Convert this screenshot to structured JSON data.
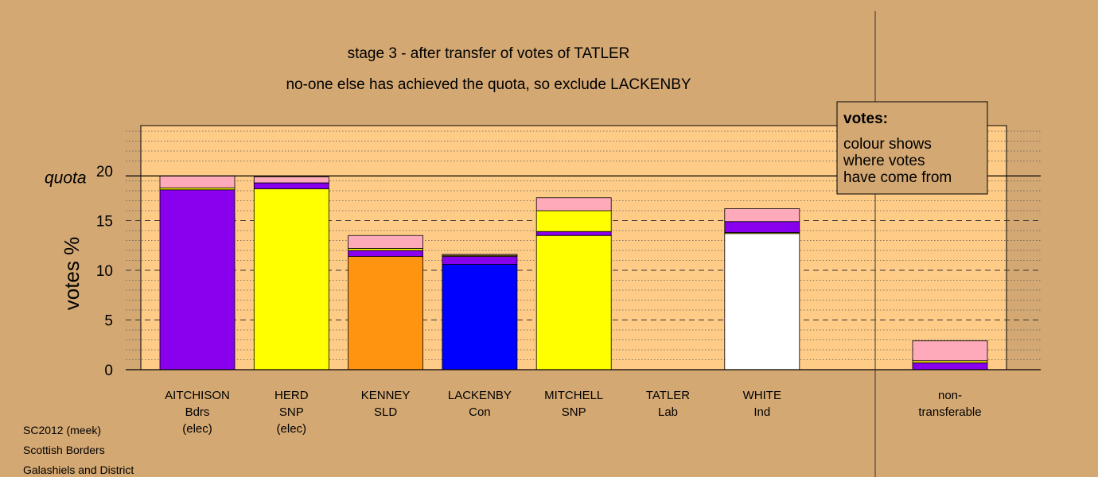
{
  "title_line1": "stage 3 - after transfer of votes of TATLER",
  "title_line2": "no-one else has achieved the quota, so exclude LACKENBY",
  "quota_label": "quota",
  "legend": {
    "heading": "votes:",
    "lines": [
      "colour shows",
      "where votes",
      "have come from"
    ]
  },
  "footer": [
    "SC2012 (meek)",
    "Scottish Borders",
    "Galashiels and District"
  ],
  "colors": {
    "background": "#d4a873",
    "plot_background": "#ffcc88",
    "Bdrs": "#8800ee",
    "SNP": "#ffff00",
    "SLD": "#ff9410",
    "Con": "#0000ff",
    "Ind": "#ffffff",
    "Lab": "#ffaabb"
  },
  "chart_data": {
    "type": "bar",
    "stacked": true,
    "ylabel": "votes %",
    "ylim": [
      0,
      24
    ],
    "yticks": [
      0,
      5,
      10,
      15,
      20
    ],
    "quota": 19.5,
    "grid": "minor dotted every 1, dashed at 5, 10, 15",
    "legend_position": "top-right",
    "candidates": [
      {
        "name": "AITCHISON",
        "party": "Bdrs",
        "status": "(elec)",
        "segments": [
          {
            "source": "Bdrs",
            "value": 18.1
          },
          {
            "source": "SNP",
            "value": 0.2
          },
          {
            "source": "Lab",
            "value": 1.2
          }
        ]
      },
      {
        "name": "HERD",
        "party": "SNP",
        "status": "(elec)",
        "segments": [
          {
            "source": "SNP",
            "value": 18.2
          },
          {
            "source": "Bdrs",
            "value": 0.6
          },
          {
            "source": "Lab",
            "value": 0.6
          }
        ]
      },
      {
        "name": "KENNEY",
        "party": "SLD",
        "status": "",
        "segments": [
          {
            "source": "SLD",
            "value": 11.4
          },
          {
            "source": "Bdrs",
            "value": 0.6
          },
          {
            "source": "SNP",
            "value": 0.2
          },
          {
            "source": "Lab",
            "value": 1.3
          }
        ]
      },
      {
        "name": "LACKENBY",
        "party": "Con",
        "status": "",
        "segments": [
          {
            "source": "Con",
            "value": 10.6
          },
          {
            "source": "Bdrs",
            "value": 0.8
          },
          {
            "source": "SNP",
            "value": 0.1
          },
          {
            "source": "Lab",
            "value": 0.1
          }
        ]
      },
      {
        "name": "MITCHELL",
        "party": "SNP",
        "status": "",
        "segments": [
          {
            "source": "SNP",
            "value": 13.5
          },
          {
            "source": "Bdrs",
            "value": 0.4
          },
          {
            "source": "SNP",
            "value": 2.1
          },
          {
            "source": "Lab",
            "value": 1.3
          }
        ]
      },
      {
        "name": "TATLER",
        "party": "Lab",
        "status": "",
        "segments": []
      },
      {
        "name": "WHITE",
        "party": "Ind",
        "status": "",
        "segments": [
          {
            "source": "Ind",
            "value": 13.7
          },
          {
            "source": "SNP",
            "value": 0.1
          },
          {
            "source": "Bdrs",
            "value": 1.1
          },
          {
            "source": "Lab",
            "value": 1.3
          }
        ]
      }
    ],
    "non_transferable": {
      "label_lines": [
        "non-",
        "transferable"
      ],
      "segments": [
        {
          "source": "Bdrs",
          "value": 0.7
        },
        {
          "source": "SNP",
          "value": 0.2
        },
        {
          "source": "Lab",
          "value": 2.0
        }
      ]
    }
  }
}
